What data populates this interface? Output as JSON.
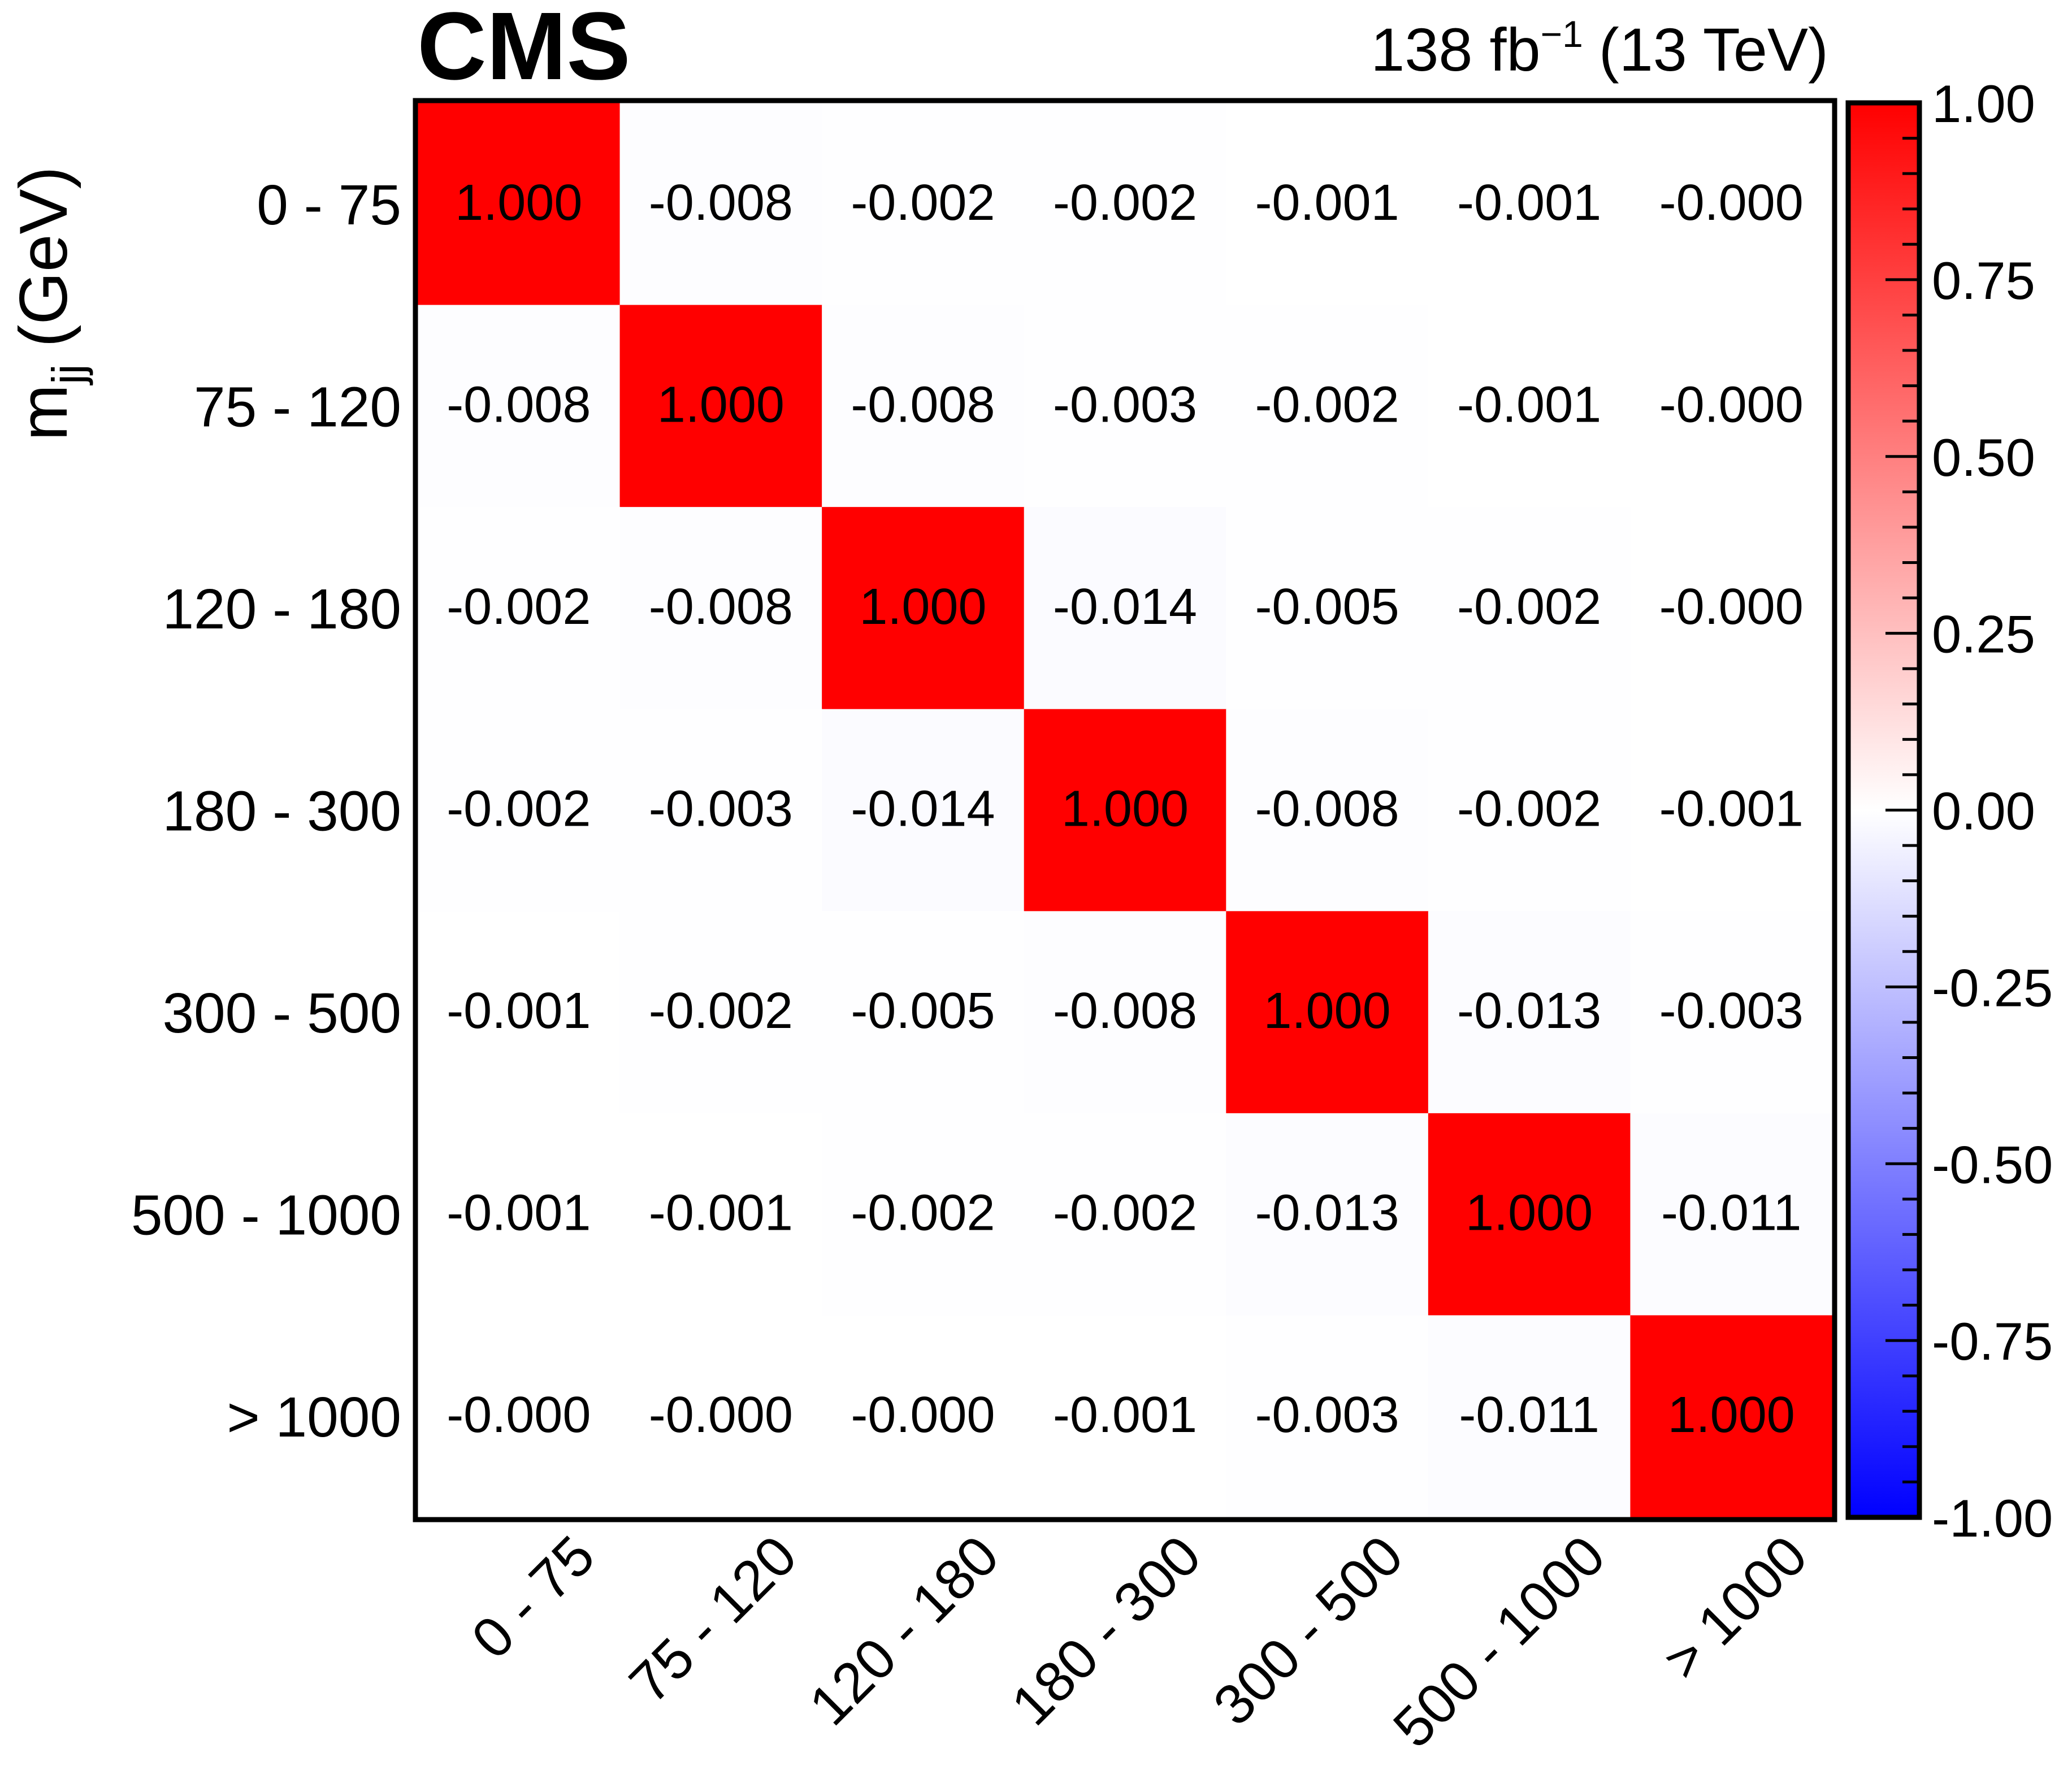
{
  "header": {
    "experiment": "CMS",
    "lumi_value": "138 fb",
    "lumi_exponent": "−1",
    "energy": "(13 TeV)"
  },
  "axis": {
    "ylabel_main": "m",
    "ylabel_sub": "jj",
    "ylabel_unit": "(GeV)"
  },
  "colors": {
    "positive": "#ff0000",
    "zero": "#ffffff",
    "negative": "#0000ff"
  },
  "chart_data": {
    "type": "heatmap",
    "title": "",
    "xlabel": "",
    "ylabel": "m_jj (GeV)",
    "categories": [
      "0 - 75",
      "75 - 120",
      "120 - 180",
      "180 - 300",
      "300 - 500",
      "500 - 1000",
      "> 1000"
    ],
    "values": [
      [
        1.0,
        -0.008,
        -0.002,
        -0.002,
        -0.001,
        -0.001,
        -0.0
      ],
      [
        -0.008,
        1.0,
        -0.008,
        -0.003,
        -0.002,
        -0.001,
        -0.0
      ],
      [
        -0.002,
        -0.008,
        1.0,
        -0.014,
        -0.005,
        -0.002,
        -0.0
      ],
      [
        -0.002,
        -0.003,
        -0.014,
        1.0,
        -0.008,
        -0.002,
        -0.001
      ],
      [
        -0.001,
        -0.002,
        -0.005,
        -0.008,
        1.0,
        -0.013,
        -0.003
      ],
      [
        -0.001,
        -0.001,
        -0.002,
        -0.002,
        -0.013,
        1.0,
        -0.011
      ],
      [
        -0.0,
        -0.0,
        -0.0,
        -0.001,
        -0.003,
        -0.011,
        1.0
      ]
    ],
    "value_labels": [
      [
        "1.000",
        "-0.008",
        "-0.002",
        "-0.002",
        "-0.001",
        "-0.001",
        "-0.000"
      ],
      [
        "-0.008",
        "1.000",
        "-0.008",
        "-0.003",
        "-0.002",
        "-0.001",
        "-0.000"
      ],
      [
        "-0.002",
        "-0.008",
        "1.000",
        "-0.014",
        "-0.005",
        "-0.002",
        "-0.000"
      ],
      [
        "-0.002",
        "-0.003",
        "-0.014",
        "1.000",
        "-0.008",
        "-0.002",
        "-0.001"
      ],
      [
        "-0.001",
        "-0.002",
        "-0.005",
        "-0.008",
        "1.000",
        "-0.013",
        "-0.003"
      ],
      [
        "-0.001",
        "-0.001",
        "-0.002",
        "-0.002",
        "-0.013",
        "1.000",
        "-0.011"
      ],
      [
        "-0.000",
        "-0.000",
        "-0.000",
        "-0.001",
        "-0.003",
        "-0.011",
        "1.000"
      ]
    ],
    "colorbar": {
      "range": [
        -1.0,
        1.0
      ],
      "ticks": [
        "1.00",
        "0.75",
        "0.50",
        "0.25",
        "0.00",
        "-0.25",
        "-0.50",
        "-0.75",
        "-1.00"
      ],
      "tick_values": [
        1.0,
        0.75,
        0.5,
        0.25,
        0.0,
        -0.25,
        -0.5,
        -0.75,
        -1.0
      ]
    },
    "grid": false
  }
}
